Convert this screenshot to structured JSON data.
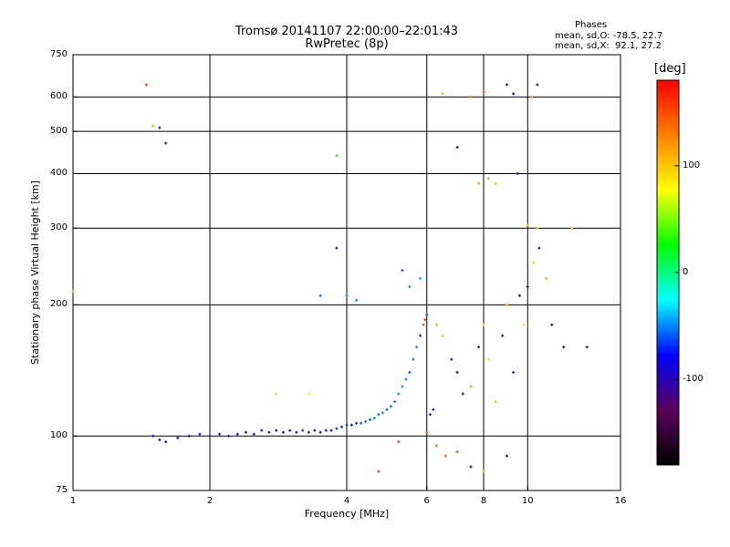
{
  "header": {
    "title_line1": "Tromsø 20141107 22:00:00–22:01:43",
    "title_line2": "RwPretec (8p)",
    "phases_title": "Phases",
    "phases_o": "mean, sd,O: -78.5, 22.7",
    "phases_x": "mean, sd,X:  92.1, 27.2"
  },
  "colorbar": {
    "title": "[deg]",
    "ticks": [
      "100",
      "0",
      "-100"
    ],
    "tick_values": [
      100,
      0,
      -100
    ],
    "range": [
      -180,
      180
    ],
    "colormap": [
      "#000000",
      "#5a005a",
      "#0000ff",
      "#00ffff",
      "#00ff00",
      "#ffff00",
      "#ff8000",
      "#ff0000"
    ]
  },
  "chart_data": {
    "type": "scatter",
    "title": "Tromsø 20141107 22:00:00–22:01:43",
    "subtitle": "RwPretec (8p)",
    "xlabel": "Frequency [MHz]",
    "ylabel": "Stationary phase Virtual Height [km]",
    "xscale": "log",
    "yscale": "log",
    "xlim": [
      1,
      16
    ],
    "ylim": [
      75,
      750
    ],
    "xticks": [
      1,
      2,
      4,
      6,
      8,
      10,
      16
    ],
    "xtick_labels": [
      "1",
      "2",
      "4",
      "6",
      "8",
      "10",
      "16"
    ],
    "yticks": [
      75,
      100,
      200,
      300,
      400,
      500,
      600,
      750
    ],
    "ytick_labels": [
      "75",
      "100",
      "200",
      "300",
      "400",
      "500",
      "600",
      "750"
    ],
    "grid": true,
    "points": [
      [
        1.5,
        100,
        -110
      ],
      [
        1.55,
        98,
        -100
      ],
      [
        1.6,
        97,
        -110
      ],
      [
        1.7,
        99,
        -95
      ],
      [
        1.8,
        100,
        -100
      ],
      [
        1.9,
        101,
        -90
      ],
      [
        2.0,
        100,
        -95
      ],
      [
        2.1,
        101,
        -100
      ],
      [
        2.2,
        100,
        -85
      ],
      [
        2.3,
        101,
        -90
      ],
      [
        2.4,
        102,
        -80
      ],
      [
        2.5,
        101,
        -95
      ],
      [
        2.6,
        103,
        -75
      ],
      [
        2.7,
        102,
        -85
      ],
      [
        2.8,
        103,
        -90
      ],
      [
        2.9,
        102,
        -80
      ],
      [
        3.0,
        103,
        -85
      ],
      [
        3.1,
        102,
        -75
      ],
      [
        3.2,
        103,
        -70
      ],
      [
        3.3,
        102,
        -85
      ],
      [
        3.4,
        103,
        -80
      ],
      [
        3.5,
        102,
        -90
      ],
      [
        3.6,
        103,
        -85
      ],
      [
        3.7,
        103,
        -75
      ],
      [
        3.8,
        104,
        -70
      ],
      [
        3.9,
        105,
        -80
      ],
      [
        4.0,
        106,
        -70
      ],
      [
        4.1,
        106,
        -75
      ],
      [
        4.2,
        107,
        -70
      ],
      [
        4.3,
        107,
        -60
      ],
      [
        4.4,
        108,
        -55
      ],
      [
        4.5,
        109,
        -60
      ],
      [
        4.6,
        110,
        -50
      ],
      [
        4.7,
        112,
        -55
      ],
      [
        4.8,
        113,
        -50
      ],
      [
        4.9,
        115,
        -60
      ],
      [
        5.0,
        117,
        -55
      ],
      [
        5.1,
        120,
        -50
      ],
      [
        5.2,
        125,
        -45
      ],
      [
        5.3,
        130,
        -50
      ],
      [
        5.4,
        135,
        -55
      ],
      [
        5.5,
        140,
        -60
      ],
      [
        5.6,
        150,
        -55
      ],
      [
        5.7,
        160,
        -50
      ],
      [
        5.8,
        170,
        -70
      ],
      [
        5.9,
        180,
        150
      ],
      [
        5.95,
        185,
        160
      ],
      [
        6.0,
        190,
        -60
      ],
      [
        6.1,
        112,
        -110
      ],
      [
        6.2,
        115,
        -115
      ],
      [
        1.45,
        640,
        160
      ],
      [
        1.5,
        515,
        110
      ],
      [
        1.55,
        510,
        -100
      ],
      [
        1.6,
        470,
        -110
      ],
      [
        3.8,
        440,
        20
      ],
      [
        3.8,
        270,
        -110
      ],
      [
        3.5,
        210,
        -60
      ],
      [
        4.0,
        210,
        -50
      ],
      [
        4.2,
        205,
        -50
      ],
      [
        5.3,
        240,
        -60
      ],
      [
        5.5,
        220,
        -50
      ],
      [
        5.8,
        230,
        -40
      ],
      [
        6.3,
        180,
        110
      ],
      [
        6.5,
        170,
        100
      ],
      [
        6.8,
        150,
        -110
      ],
      [
        7.0,
        140,
        -120
      ],
      [
        7.2,
        125,
        -100
      ],
      [
        7.5,
        130,
        120
      ],
      [
        7.8,
        160,
        -105
      ],
      [
        8.0,
        180,
        100
      ],
      [
        8.2,
        150,
        90
      ],
      [
        8.5,
        120,
        100
      ],
      [
        8.8,
        170,
        -95
      ],
      [
        9.0,
        200,
        110
      ],
      [
        9.3,
        140,
        -100
      ],
      [
        9.6,
        210,
        -90
      ],
      [
        9.8,
        180,
        90
      ],
      [
        10.0,
        220,
        -110
      ],
      [
        10.3,
        250,
        100
      ],
      [
        10.6,
        270,
        -100
      ],
      [
        11.0,
        230,
        110
      ],
      [
        11.3,
        180,
        -100
      ],
      [
        12.0,
        160,
        -110
      ],
      [
        7.5,
        600,
        140
      ],
      [
        8.0,
        615,
        150
      ],
      [
        8.5,
        380,
        110
      ],
      [
        9.0,
        640,
        -110
      ],
      [
        9.3,
        610,
        -90
      ],
      [
        9.5,
        400,
        -100
      ],
      [
        10.5,
        640,
        -110
      ],
      [
        10.2,
        600,
        120
      ],
      [
        7.8,
        380,
        120
      ],
      [
        8.2,
        390,
        115
      ],
      [
        10.0,
        305,
        110
      ],
      [
        10.5,
        300,
        105
      ],
      [
        12.5,
        300,
        110
      ],
      [
        7.0,
        460,
        -110
      ],
      [
        6.5,
        610,
        110
      ],
      [
        6.0,
        102,
        150
      ],
      [
        6.3,
        95,
        140
      ],
      [
        6.6,
        90,
        140
      ],
      [
        7.0,
        92,
        150
      ],
      [
        7.5,
        85,
        -110
      ],
      [
        8.0,
        83,
        110
      ],
      [
        9.0,
        90,
        -100
      ],
      [
        4.7,
        83,
        170
      ],
      [
        5.2,
        97,
        160
      ],
      [
        13.5,
        160,
        -110
      ],
      [
        1.0,
        215,
        110
      ],
      [
        2.8,
        125,
        60
      ],
      [
        3.3,
        125,
        70
      ]
    ]
  }
}
